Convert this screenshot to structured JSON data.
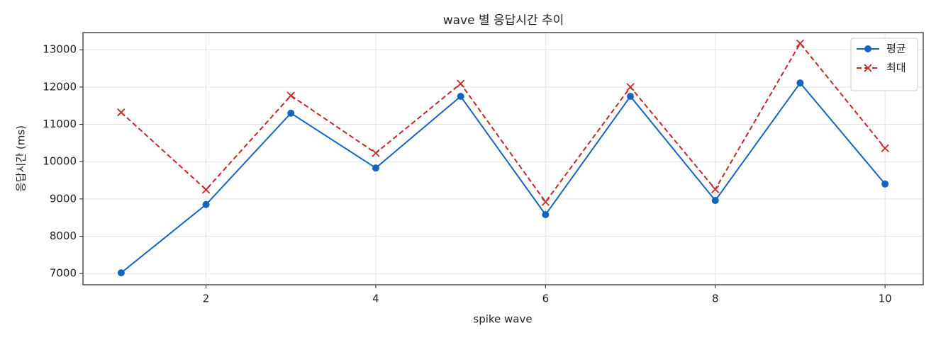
{
  "chart_data": {
    "type": "line",
    "title": "wave 별 응답시간 추이",
    "xlabel": "spike wave",
    "ylabel": "응답시간 (ms)",
    "x": [
      1,
      2,
      3,
      4,
      5,
      6,
      7,
      8,
      9,
      10
    ],
    "series": [
      {
        "name": "평균",
        "color": "#1565c0",
        "marker": "o",
        "linestyle": "solid",
        "values": [
          7020,
          8850,
          11300,
          9830,
          11750,
          8580,
          11750,
          8960,
          12110,
          9400
        ]
      },
      {
        "name": "최대",
        "color": "#c62828",
        "marker": "x",
        "linestyle": "dashed",
        "values": [
          11320,
          9250,
          11770,
          10230,
          12090,
          8920,
          12000,
          9260,
          13170,
          10360
        ]
      }
    ],
    "xlim": [
      0.55,
      10.45
    ],
    "ylim": [
      6700,
      13460
    ],
    "xticks": [
      2,
      4,
      6,
      8,
      10
    ],
    "yticks": [
      7000,
      8000,
      9000,
      10000,
      11000,
      12000,
      13000
    ],
    "grid": true,
    "legend": "upper right"
  }
}
